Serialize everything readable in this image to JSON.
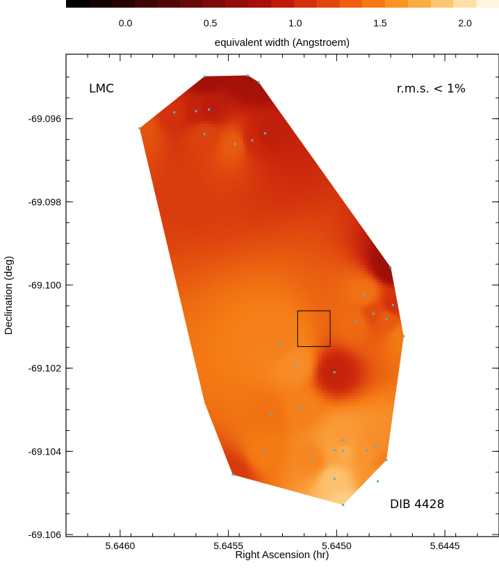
{
  "chart_data": {
    "type": "heatmap",
    "colorbar": {
      "title": "equivalent width (Angstroem)",
      "range": [
        -0.35,
        2.2
      ],
      "ticks": [
        0.0,
        0.5,
        1.0,
        1.5,
        2.0
      ],
      "tick_labels": [
        "0.0",
        "0.5",
        "1.0",
        "1.5",
        "2.0"
      ],
      "colors": [
        "#000000",
        "#140000",
        "#280302",
        "#3d0504",
        "#520705",
        "#670906",
        "#7c0b07",
        "#910d08",
        "#a80f09",
        "#bf1a0a",
        "#d4300c",
        "#e2460d",
        "#ee5f10",
        "#f47a14",
        "#f99323",
        "#fbac43",
        "#fdc670",
        "#fee0a6",
        "#fff5dc"
      ]
    },
    "xlabel": "Right Ascension (hr)",
    "ylabel": "Declination (deg)",
    "xlim": [
      5.64625,
      5.64425
    ],
    "ylim": [
      -69.10605,
      -69.09445
    ],
    "xticks": [
      5.646,
      5.6455,
      5.645,
      5.6445
    ],
    "xtick_labels": [
      "5.6460",
      "5.6455",
      "5.6450",
      "5.6445"
    ],
    "yticks": [
      -69.096,
      -69.098,
      -69.1,
      -69.102,
      -69.104,
      -69.106
    ],
    "ytick_labels": [
      "-69.096",
      "-69.098",
      "-69.100",
      "-69.102",
      "-69.104",
      "-69.106"
    ],
    "annotations": {
      "field": "LMC",
      "rms": "r.m.s. < 1%",
      "line": "DIB 4428"
    },
    "box": {
      "ra": [
        5.64518,
        5.64503
      ],
      "dec": [
        -69.10148,
        -69.10062
      ]
    },
    "grid": false,
    "hull": [
      [
        5.64591,
        -69.09623
      ],
      [
        5.64561,
        -69.09498
      ],
      [
        5.64541,
        -69.09496
      ],
      [
        5.64536,
        -69.09512
      ],
      [
        5.64475,
        -69.09958
      ],
      [
        5.64469,
        -69.10123
      ],
      [
        5.64477,
        -69.10421
      ],
      [
        5.64497,
        -69.10529
      ],
      [
        5.64548,
        -69.10456
      ],
      [
        5.64561,
        -69.10283
      ],
      [
        5.64591,
        -69.09623
      ]
    ],
    "stations": [
      {
        "ra": 5.64591,
        "dec": -69.09623,
        "ew": 1.25
      },
      {
        "ra": 5.64575,
        "dec": -69.09585,
        "ew": 1.05
      },
      {
        "ra": 5.64565,
        "dec": -69.09582,
        "ew": 0.95
      },
      {
        "ra": 5.64559,
        "dec": -69.09578,
        "ew": 0.9
      },
      {
        "ra": 5.64561,
        "dec": -69.09498,
        "ew": 0.72
      },
      {
        "ra": 5.64541,
        "dec": -69.09496,
        "ew": 0.75
      },
      {
        "ra": 5.64536,
        "dec": -69.09512,
        "ew": 0.78
      },
      {
        "ra": 5.64561,
        "dec": -69.09637,
        "ew": 1.15
      },
      {
        "ra": 5.64547,
        "dec": -69.09661,
        "ew": 1.3
      },
      {
        "ra": 5.64539,
        "dec": -69.09652,
        "ew": 1.0
      },
      {
        "ra": 5.64533,
        "dec": -69.09635,
        "ew": 0.92
      },
      {
        "ra": 5.64475,
        "dec": -69.09958,
        "ew": 0.7
      },
      {
        "ra": 5.64487,
        "dec": -69.10023,
        "ew": 1.45
      },
      {
        "ra": 5.64474,
        "dec": -69.10048,
        "ew": 1.05
      },
      {
        "ra": 5.64483,
        "dec": -69.10069,
        "ew": 1.2
      },
      {
        "ra": 5.64477,
        "dec": -69.10082,
        "ew": 1.3
      },
      {
        "ra": 5.64491,
        "dec": -69.10088,
        "ew": 1.4
      },
      {
        "ra": 5.64469,
        "dec": -69.10123,
        "ew": 1.5
      },
      {
        "ra": 5.64526,
        "dec": -69.10139,
        "ew": 1.55
      },
      {
        "ra": 5.64519,
        "dec": -69.10193,
        "ew": 1.65
      },
      {
        "ra": 5.64501,
        "dec": -69.1021,
        "ew": 0.95
      },
      {
        "ra": 5.6453,
        "dec": -69.10313,
        "ew": 1.45
      },
      {
        "ra": 5.64517,
        "dec": -69.10299,
        "ew": 1.55
      },
      {
        "ra": 5.64497,
        "dec": -69.10373,
        "ew": 1.75
      },
      {
        "ra": 5.64482,
        "dec": -69.10388,
        "ew": 1.65
      },
      {
        "ra": 5.64533,
        "dec": -69.104,
        "ew": 1.5
      },
      {
        "ra": 5.64511,
        "dec": -69.10417,
        "ew": 1.6
      },
      {
        "ra": 5.64501,
        "dec": -69.10397,
        "ew": 1.8
      },
      {
        "ra": 5.64497,
        "dec": -69.10399,
        "ew": 1.85
      },
      {
        "ra": 5.64486,
        "dec": -69.10398,
        "ew": 1.7
      },
      {
        "ra": 5.64477,
        "dec": -69.10421,
        "ew": 1.55
      },
      {
        "ra": 5.64501,
        "dec": -69.10466,
        "ew": 1.95
      },
      {
        "ra": 5.64481,
        "dec": -69.10472,
        "ew": 1.7
      },
      {
        "ra": 5.64548,
        "dec": -69.10456,
        "ew": 1.1
      },
      {
        "ra": 5.64497,
        "dec": -69.10529,
        "ew": 2.0
      }
    ]
  }
}
